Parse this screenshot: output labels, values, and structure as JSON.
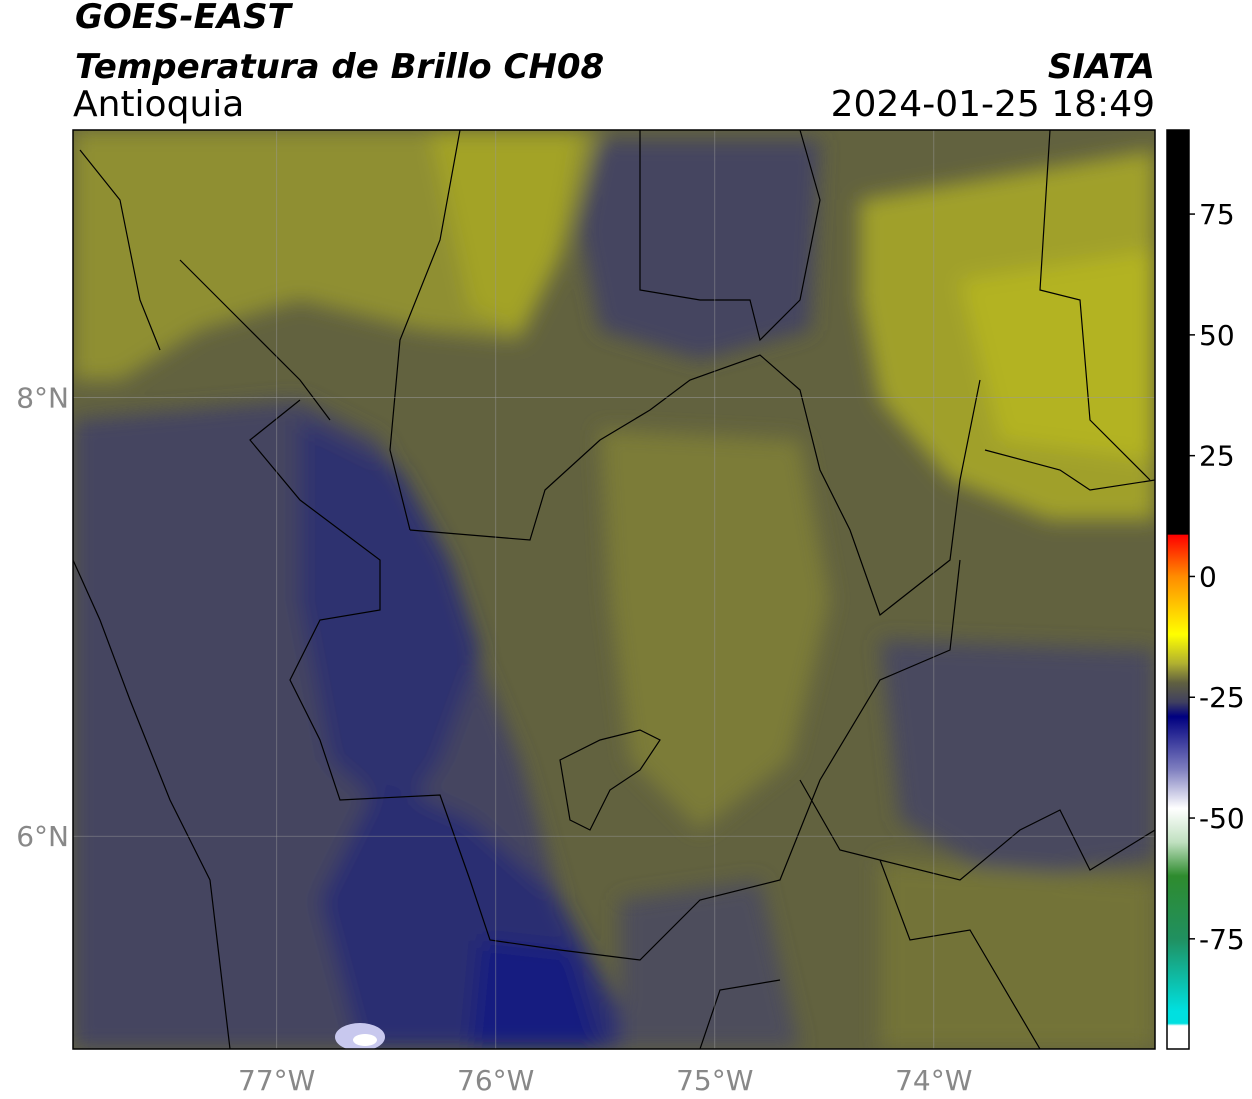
{
  "header": {
    "satellite": "GOES-EAST",
    "product": "Temperatura de Brillo CH08",
    "region": "Antioquia",
    "source": "SIATA",
    "datetime": "2024-01-25 18:49"
  },
  "map": {
    "lonlim": [
      -77.93,
      -72.99
    ],
    "latlim": [
      5.03,
      9.22
    ],
    "xticks": [
      {
        "value": -77,
        "label": "77°W"
      },
      {
        "value": -76,
        "label": "76°W"
      },
      {
        "value": -75,
        "label": "75°W"
      },
      {
        "value": -74,
        "label": "74°W"
      }
    ],
    "yticks": [
      {
        "value": 8,
        "label": "8°N"
      },
      {
        "value": 6,
        "label": "6°N"
      }
    ],
    "grid": true
  },
  "colorbar": {
    "lim": [
      -97.8,
      92.4
    ],
    "ticks": [
      75,
      50,
      25,
      0,
      -25,
      -50,
      -75
    ],
    "colormap": [
      [
        92.4,
        "#000000"
      ],
      [
        8.7,
        "#000000"
      ],
      [
        8.6,
        "#ff0000"
      ],
      [
        0,
        "#ff8c00"
      ],
      [
        -12,
        "#ffff00"
      ],
      [
        -18,
        "#b0b030"
      ],
      [
        -22,
        "#606040"
      ],
      [
        -26,
        "#404060"
      ],
      [
        -29,
        "#000080"
      ],
      [
        -40,
        "#8080c0"
      ],
      [
        -48,
        "#ffffff"
      ],
      [
        -55,
        "#c0e0c0"
      ],
      [
        -62,
        "#2e8b2e"
      ],
      [
        -75,
        "#209060"
      ],
      [
        -90,
        "#00e0e0"
      ],
      [
        -92.5,
        "#00e0e0"
      ],
      [
        -93,
        "#ffffff"
      ],
      [
        -97.8,
        "#ffffff"
      ]
    ]
  }
}
